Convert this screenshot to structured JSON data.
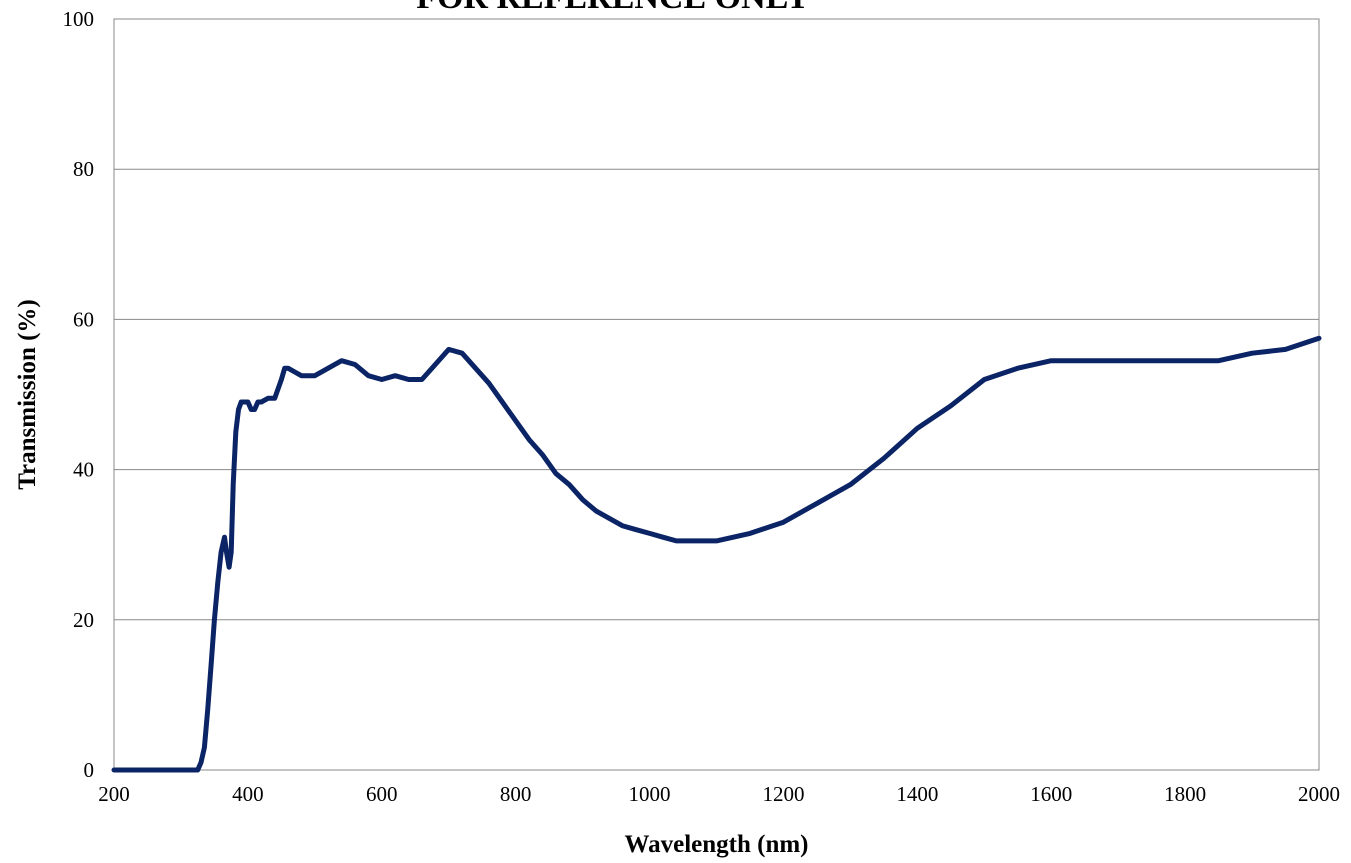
{
  "banner_text": "FOR REFERENCE ONLY",
  "chart_data": {
    "type": "line",
    "title": "",
    "xlabel": "Wavelength (nm)",
    "ylabel": "Transmission (%)",
    "xlim": [
      200,
      2000
    ],
    "ylim": [
      0,
      100
    ],
    "x_ticks": [
      200,
      400,
      600,
      800,
      1000,
      1200,
      1400,
      1600,
      1800,
      2000
    ],
    "y_ticks": [
      0,
      20,
      40,
      60,
      80,
      100
    ],
    "grid": "horizontal",
    "legend": "none",
    "series": [
      {
        "color": "#0b2466",
        "x": [
          200,
          250,
          300,
          325,
          330,
          335,
          340,
          345,
          350,
          355,
          360,
          365,
          368,
          372,
          375,
          378,
          382,
          386,
          390,
          395,
          400,
          405,
          410,
          415,
          420,
          430,
          440,
          450,
          455,
          460,
          470,
          480,
          500,
          520,
          540,
          560,
          580,
          600,
          620,
          640,
          660,
          680,
          700,
          720,
          740,
          760,
          780,
          800,
          820,
          840,
          860,
          880,
          900,
          920,
          940,
          960,
          980,
          1000,
          1020,
          1040,
          1060,
          1080,
          1100,
          1150,
          1200,
          1250,
          1300,
          1350,
          1400,
          1450,
          1500,
          1550,
          1600,
          1650,
          1700,
          1750,
          1800,
          1850,
          1900,
          1950,
          2000
        ],
        "y": [
          0,
          0,
          0,
          0,
          1,
          3,
          8,
          14,
          20,
          25,
          29,
          31,
          29,
          27,
          29,
          38,
          45,
          48,
          49,
          49,
          49,
          48,
          48,
          49,
          49,
          49.5,
          49.5,
          52,
          53.5,
          53.5,
          53,
          52.5,
          52.5,
          53.5,
          54.5,
          54,
          52.5,
          52,
          52.5,
          52,
          52,
          54,
          56,
          55.5,
          53.5,
          51.5,
          49,
          46.5,
          44,
          42,
          39.5,
          38,
          36,
          34.5,
          33.5,
          32.5,
          32,
          31.5,
          31,
          30.5,
          30.5,
          30.5,
          30.5,
          31.5,
          33,
          35.5,
          38,
          41.5,
          45.5,
          48.5,
          52,
          53.5,
          54.5,
          54.5,
          54.5,
          54.5,
          54.5,
          54.5,
          55.5,
          56,
          57.5
        ]
      }
    ]
  }
}
